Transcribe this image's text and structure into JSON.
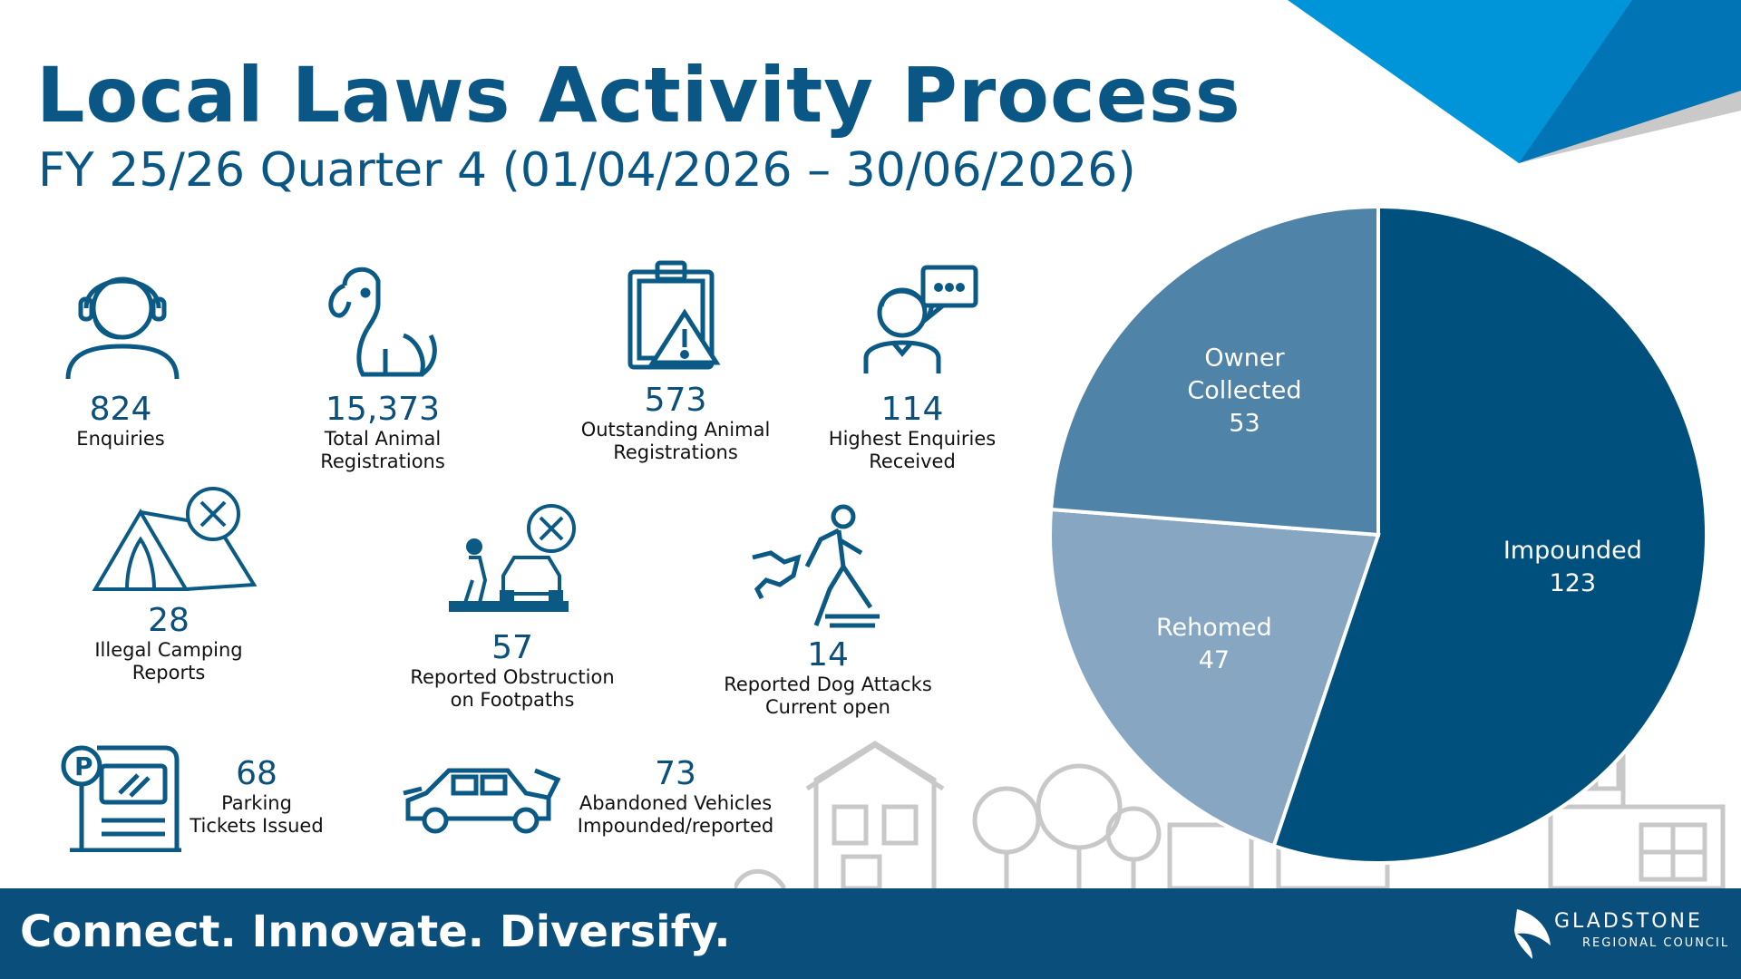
{
  "header": {
    "title": "Local Laws Activity Process",
    "subtitle": "FY 25/26 Quarter 4 (01/04/2026 – 30/06/2026)"
  },
  "stats": {
    "enquiries": {
      "value": "824",
      "label1": "Enquiries",
      "label2": ""
    },
    "animal_registrations": {
      "value": "15,373",
      "label1": "Total Animal",
      "label2": "Registrations"
    },
    "outstanding_registrations": {
      "value": "573",
      "label1": "Outstanding Animal",
      "label2": "Registrations"
    },
    "highest_enquiries": {
      "value": "114",
      "label1": "Highest Enquiries",
      "label2": "Received"
    },
    "illegal_camping": {
      "value": "28",
      "label1": "Illegal Camping",
      "label2": "Reports"
    },
    "footpath_obstruction": {
      "value": "57",
      "label1": "Reported Obstruction",
      "label2": "on Footpaths"
    },
    "dog_attacks": {
      "value": "14",
      "label1": "Reported Dog Attacks",
      "label2": "Current open"
    },
    "parking_tickets": {
      "value": "68",
      "label1": "Parking",
      "label2": "Tickets Issued"
    },
    "abandoned_vehicles": {
      "value": "73",
      "label1": "Abandoned Vehicles",
      "label2": "Impounded/reported"
    }
  },
  "icons": {
    "enquiries": "headset-person-icon",
    "animal_registrations": "dog-icon",
    "outstanding_registrations": "clipboard-warning-icon",
    "highest_enquiries": "person-speech-bubble-icon",
    "illegal_camping": "tent-prohibited-icon",
    "footpath_obstruction": "car-blocking-pedestrian-icon",
    "dog_attacks": "dog-attack-icon",
    "parking_tickets": "parking-meter-icon",
    "abandoned_vehicles": "car-hood-open-icon"
  },
  "chart_data": {
    "type": "pie",
    "categories": [
      "Impounded",
      "Rehomed",
      "Owner Collected"
    ],
    "values": [
      123,
      47,
      53
    ],
    "label_lines": [
      [
        "Impounded",
        "123"
      ],
      [
        "Rehomed",
        "47"
      ],
      [
        "Owner",
        "Collected",
        "53"
      ]
    ],
    "colors": [
      "#00507e",
      "#86a6c2",
      "#4f83a8"
    ]
  },
  "footer": {
    "tagline": "Connect. Innovate. Diversify.",
    "logo_line1": "GLADSTONE",
    "logo_line2": "REGIONAL COUNCIL"
  },
  "colors": {
    "primary": "#0a5684",
    "footer": "#0a4f7b",
    "accent_light": "#0092d4",
    "accent_dark": "#0070b0",
    "skyline": "#c8c8c8"
  }
}
